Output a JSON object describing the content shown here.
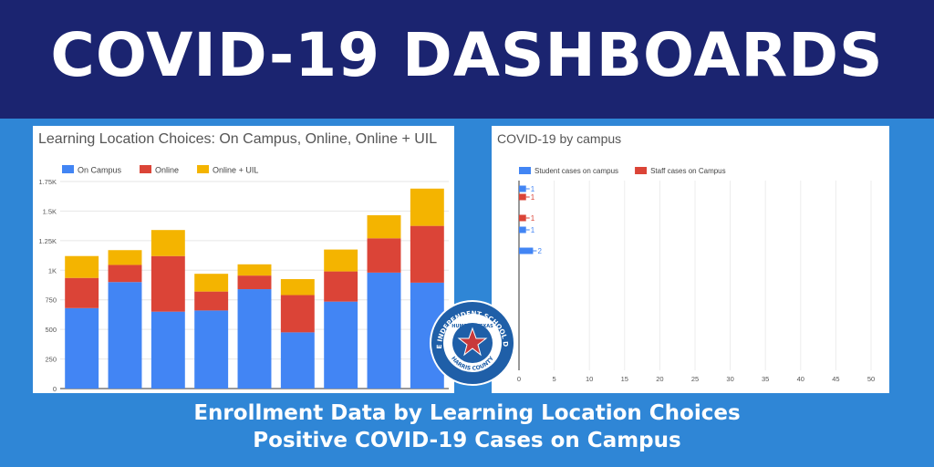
{
  "banner": {
    "title": "COVID-19 DASHBOARDS"
  },
  "footer": {
    "line1": "Enrollment Data by Learning Location Choices",
    "line2": "Positive COVID-19 Cases on Campus"
  },
  "colors": {
    "banner": "#1b2470",
    "background": "#2f86d6",
    "blue": "#4285f4",
    "red": "#db4437",
    "yellow": "#f4b400"
  },
  "seal": {
    "text": "HUMBLE INDEPENDENT SCHOOL DISTRICT",
    "inner": "HUMBLE, TEXAS",
    "county": "HARRIS COUNTY",
    "icon": "star-icon"
  },
  "chart_data": [
    {
      "type": "bar",
      "stacked": true,
      "title": "Learning Location Choices: On Campus, Online, Online + UIL",
      "legend_position": "top-left",
      "ylim": [
        0,
        1750
      ],
      "yticks": [
        0,
        250,
        500,
        750,
        1000,
        1250,
        1500,
        1750
      ],
      "ytick_labels": [
        "0",
        "250",
        "500",
        "750",
        "1K",
        "1.25K",
        "1.5K",
        "1.75K"
      ],
      "categories": [
        "",
        "",
        "",
        "",
        "",
        "",
        "",
        "",
        ""
      ],
      "series": [
        {
          "name": "On Campus",
          "color": "#4285f4",
          "values": [
            680,
            900,
            650,
            660,
            840,
            475,
            735,
            980,
            895
          ]
        },
        {
          "name": "Online",
          "color": "#db4437",
          "values": [
            255,
            145,
            470,
            160,
            115,
            315,
            255,
            290,
            480
          ]
        },
        {
          "name": "Online + UIL",
          "color": "#f4b400",
          "values": [
            185,
            125,
            220,
            150,
            95,
            135,
            185,
            195,
            315
          ]
        }
      ]
    },
    {
      "type": "bar",
      "orientation": "horizontal",
      "title": "COVID-19 by campus",
      "legend_position": "top-left",
      "xlim": [
        0,
        50
      ],
      "xticks": [
        0,
        5,
        10,
        15,
        20,
        25,
        30,
        35,
        40,
        45,
        50
      ],
      "grid": true,
      "series": [
        {
          "name": "Student cases on campus",
          "color": "#4285f4"
        },
        {
          "name": "Staff cases on Campus",
          "color": "#db4437"
        }
      ],
      "bars": [
        {
          "series": 0,
          "value": 1,
          "label": "1"
        },
        {
          "series": 1,
          "value": 1,
          "label": "1"
        },
        {
          "series": 1,
          "value": 1,
          "label": "1"
        },
        {
          "series": 0,
          "value": 1,
          "label": "1"
        },
        {
          "series": 0,
          "value": 2,
          "label": "2"
        }
      ]
    }
  ]
}
